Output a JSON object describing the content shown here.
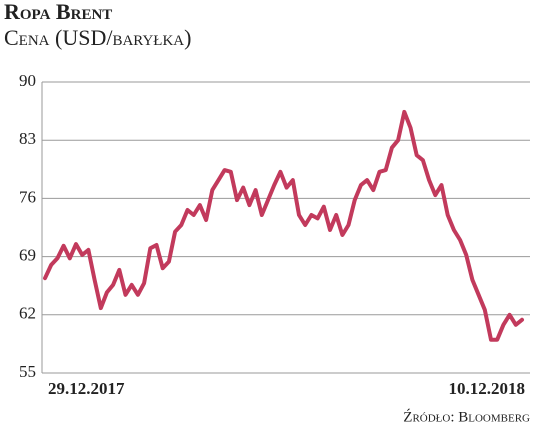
{
  "chart_data": {
    "type": "line",
    "title": "Ropa Brent",
    "subtitle": "Cena (USD/baryłka)",
    "source": "Źródło: Bloomberg",
    "categories": [
      "29.12.2017",
      null,
      null,
      null,
      null,
      null,
      null,
      null,
      null,
      null,
      null,
      null,
      null,
      null,
      null,
      null,
      null,
      null,
      null,
      null,
      null,
      null,
      null,
      null,
      null,
      null,
      null,
      null,
      null,
      null,
      null,
      null,
      null,
      null,
      null,
      null,
      null,
      null,
      null,
      null,
      null,
      null,
      null,
      null,
      null,
      null,
      null,
      null,
      null,
      null,
      null,
      null,
      null,
      null,
      null,
      null,
      null,
      null,
      null,
      null,
      null,
      null,
      null,
      null,
      null,
      null,
      null,
      null,
      null,
      null,
      null,
      null,
      null,
      null,
      null,
      null,
      null,
      "10.12.2018"
    ],
    "values": [
      66.4,
      68,
      68.8,
      70.3,
      68.8,
      70.5,
      69.2,
      69.8,
      66.2,
      62.8,
      64.7,
      65.6,
      67.4,
      64.4,
      65.6,
      64.4,
      65.8,
      70,
      70.4,
      67.6,
      68.4,
      72,
      72.8,
      74.6,
      74,
      75.2,
      73.4,
      77,
      78.2,
      79.4,
      79.2,
      75.8,
      77.3,
      75.2,
      77,
      74,
      75.8,
      77.6,
      79.2,
      77.3,
      78.2,
      74,
      72.8,
      74,
      73.6,
      75,
      72.2,
      74,
      71.6,
      72.8,
      75.8,
      77.6,
      78.2,
      77,
      79.2,
      79.4,
      82.1,
      83,
      86.4,
      84.5,
      81.2,
      80.6,
      78.2,
      76.4,
      77.6,
      74,
      72.2,
      71,
      69.2,
      66.2,
      64.4,
      62.6,
      59,
      59,
      60.8,
      62,
      60.8,
      61.4
    ],
    "color": "#c23a5c",
    "ylim": [
      55,
      90
    ],
    "yticks": [
      55,
      62,
      69,
      76,
      83,
      90
    ],
    "grid": true
  }
}
